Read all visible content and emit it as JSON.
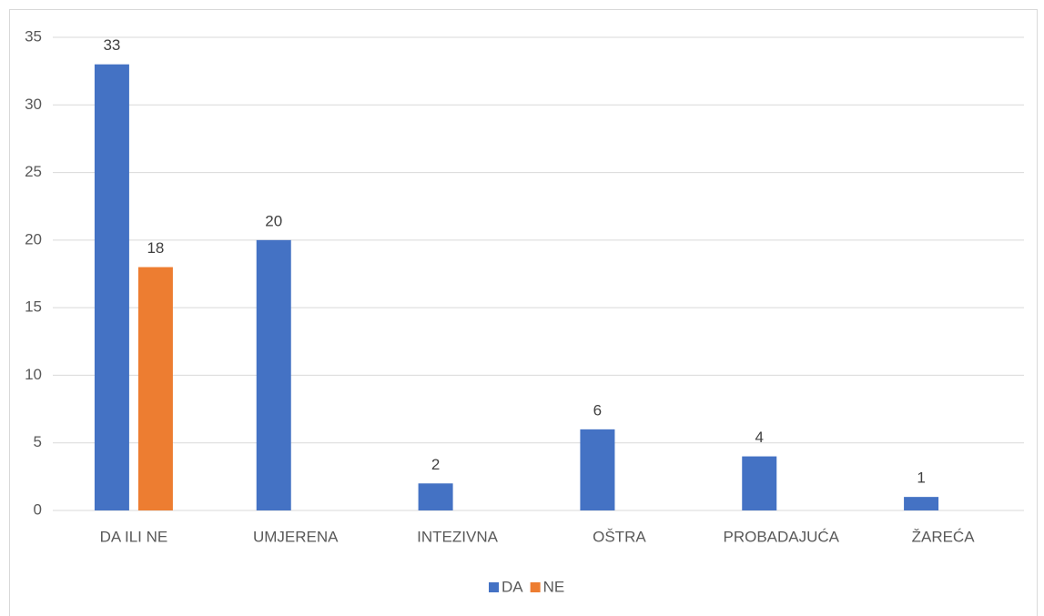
{
  "chart_data": {
    "type": "bar",
    "categories": [
      "DA ILI NE",
      "UMJERENA",
      "INTEZIVNA",
      "OŠTRA",
      "PROBADAJUĆA",
      "ŽAREĆA"
    ],
    "series": [
      {
        "name": "DA",
        "color": "#4472c4",
        "values": [
          33,
          20,
          2,
          6,
          4,
          1
        ]
      },
      {
        "name": "NE",
        "color": "#ed7d31",
        "values": [
          18,
          null,
          null,
          null,
          null,
          null
        ]
      }
    ],
    "ylim": [
      0,
      35
    ],
    "yticks": [
      0,
      5,
      10,
      15,
      20,
      25,
      30,
      35
    ],
    "grid": true,
    "legend": "bottom"
  }
}
